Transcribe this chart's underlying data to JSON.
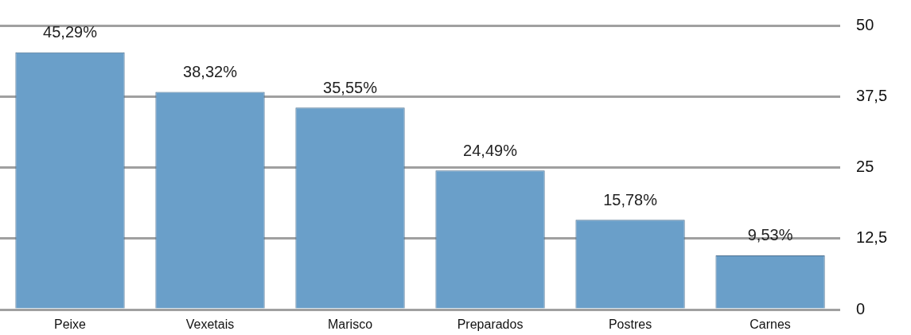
{
  "chart_data": {
    "type": "bar",
    "categories": [
      "Peixe",
      "Vexetais",
      "Marisco",
      "Preparados",
      "Postres",
      "Carnes"
    ],
    "values": [
      45.29,
      38.32,
      35.55,
      24.49,
      15.78,
      9.53
    ],
    "value_labels": [
      "45,29%",
      "38,32%",
      "35,55%",
      "24,49%",
      "15,78%",
      "9,53%"
    ],
    "color": "#6a9fc9",
    "ylim": [
      0,
      50
    ],
    "yticks": [
      0,
      {
        "value": 12.5,
        "label": "12,5"
      },
      25,
      {
        "value": 37.5,
        "label": "37,5"
      },
      50
    ],
    "grid": "y"
  }
}
